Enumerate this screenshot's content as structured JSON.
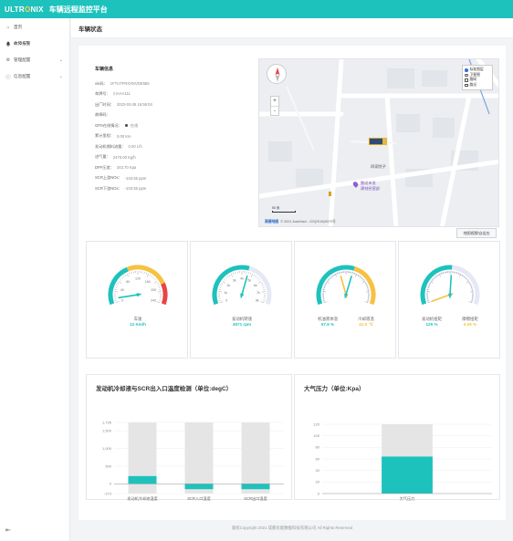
{
  "header": {
    "logo_pre": "ULTR",
    "logo_mark": "O",
    "logo_post": "NIX",
    "app_title": "车辆远程监控平台"
  },
  "sidebar": {
    "items": [
      {
        "label": "首页",
        "icon": "home-icon",
        "expandable": false
      },
      {
        "label": "故障报警",
        "icon": "bell-icon",
        "expandable": false
      },
      {
        "label": "管理配置",
        "icon": "gear-icon",
        "expandable": true
      },
      {
        "label": "信息配置",
        "icon": "info-icon",
        "expandable": true
      }
    ]
  },
  "page": {
    "title": "车辆状态",
    "footer": "版权Copyright 2021 成都优能数据科技有限公司 All Rights Reserved"
  },
  "vehicle_info": {
    "title": "车辆信息",
    "rows": [
      {
        "key": "vin码：",
        "value": "1FTUTFRXXNVDE555"
      },
      {
        "key": "车牌号：",
        "value": "川AAA111"
      },
      {
        "key": "出厂时间：",
        "value": "2022-03-28 16:59:04"
      },
      {
        "key": "故障码：",
        "value": ""
      },
      {
        "key": "GPS在线情况：",
        "value": "在线",
        "dot": true
      },
      {
        "key": "累计里程：",
        "value": "0.00 Km"
      },
      {
        "key": "发动机燃料流量：",
        "value": "0.00 L/h"
      },
      {
        "key": "进气量：",
        "value": "2475.00 Kg/h"
      },
      {
        "key": "DPF压差：",
        "value": "343.70 Kpa"
      },
      {
        "key": "SCR上游NOx：",
        "value": "-103.55 ppm"
      },
      {
        "key": "SCR下游NOx：",
        "value": "-103.55 ppm"
      }
    ]
  },
  "map": {
    "layers": [
      {
        "label": "标准图层",
        "checked": true,
        "type": "radio"
      },
      {
        "label": "卫星图",
        "checked": false,
        "type": "radio"
      },
      {
        "label": "路网",
        "checked": false,
        "type": "check"
      },
      {
        "label": "路况",
        "checked": false,
        "type": "check"
      }
    ],
    "zoom_in": "+",
    "zoom_out": "-",
    "label_place": "四家院子",
    "poi_line1": "鹏成市发",
    "poi_line2": "建材经营部",
    "scale": "50 米",
    "brand": "高德地图",
    "copyright": "© 2021 AutoNavi - GS(2019)6379号",
    "button": "地图视野自适应"
  },
  "gauges": [
    {
      "labels": [
        "车速"
      ],
      "values": [
        "12 Km/h"
      ],
      "colors": [
        "#1ec2bd"
      ],
      "ticks": [
        "0",
        "40",
        "80",
        "120",
        "160",
        "200",
        "240"
      ],
      "min": 0,
      "max": 240,
      "reading": 12,
      "bands": [
        {
          "to": 0.4,
          "color": "#1ec2bd"
        },
        {
          "to": 0.8,
          "color": "#f5c242"
        },
        {
          "to": 1,
          "color": "#e84545"
        }
      ]
    },
    {
      "labels": [
        "发动机转速"
      ],
      "values": [
        "4571 rpm"
      ],
      "colors": [
        "#1ec2bd"
      ],
      "ticks": [
        "0",
        "1k",
        "2k",
        "3k",
        "4k",
        "5k",
        "6k",
        "7k",
        "8k"
      ],
      "min": 0,
      "max": 8000,
      "reading": 4571,
      "bands": [
        {
          "to": 0.57,
          "color": "#1ec2bd"
        },
        {
          "to": 1,
          "color": "#e6e9f5"
        }
      ]
    },
    {
      "labels": [
        "机油液体温",
        "冷却液温"
      ],
      "values": [
        "57.6 %",
        "42.9 ℃"
      ],
      "colors": [
        "#1ec2bd",
        "#f5c242"
      ],
      "min": 0,
      "max": 100,
      "readings": [
        57.6,
        42.9
      ],
      "bands": [
        {
          "to": 0.58,
          "color": "#1ec2bd"
        },
        {
          "to": 1,
          "color": "#f5c242"
        }
      ]
    },
    {
      "labels": [
        "发动机扭矩",
        "摩擦扭矩"
      ],
      "values": [
        "129 %",
        "0.06 %"
      ],
      "colors": [
        "#1ec2bd",
        "#f5c242"
      ],
      "min": 0,
      "max": 250,
      "readings": [
        129,
        0.06
      ],
      "bands": [
        {
          "to": 0.52,
          "color": "#1ec2bd"
        },
        {
          "to": 1,
          "color": "#e6e9f5"
        }
      ]
    }
  ],
  "chart_data": [
    {
      "type": "bar",
      "title": "发动机冷却液与SCR出入口温度检测（单位:degC）",
      "categories": [
        "发动机冷却液温度",
        "SCR入口温度",
        "SCR出口温度"
      ],
      "values": [
        220,
        -150,
        -150
      ],
      "ylim": [
        -273,
        1735
      ],
      "yticks": [
        "1,735",
        "1,500",
        "1,000",
        "500",
        "0",
        "-273"
      ],
      "ytick_values": [
        1735,
        1500,
        1000,
        500,
        0,
        -273
      ],
      "bar_color": "#1ec2bd",
      "background_color": "#e5e5e5",
      "grid": true
    },
    {
      "type": "bar",
      "title": "大气压力（单位:Kpa）",
      "categories": [
        "大气压力"
      ],
      "values": [
        64
      ],
      "ylim": [
        0,
        120
      ],
      "yticks": [
        "120",
        "100",
        "80",
        "60",
        "40",
        "20",
        "0"
      ],
      "ytick_values": [
        120,
        100,
        80,
        60,
        40,
        20,
        0
      ],
      "bar_color": "#1ec2bd",
      "background_color": "#e5e5e5",
      "grid": true
    }
  ]
}
